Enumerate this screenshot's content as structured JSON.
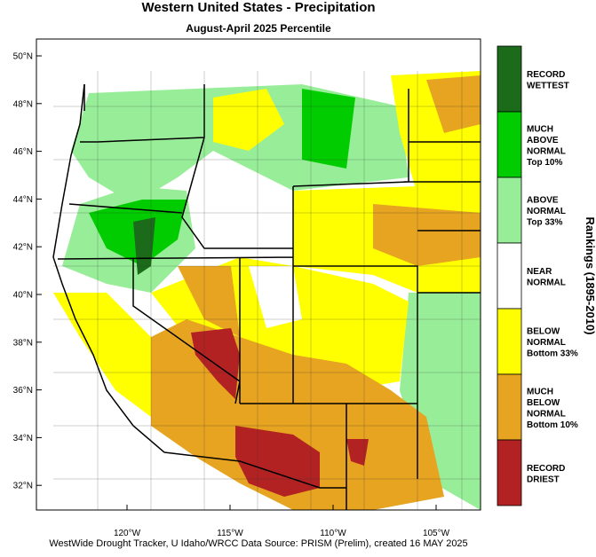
{
  "header": {
    "title": "Western United States - Precipitation",
    "subtitle": "August-April 2025 Percentile"
  },
  "map": {
    "lon_ticks": [
      {
        "value": -120,
        "label": "120°W"
      },
      {
        "value": -115,
        "label": "115°W"
      },
      {
        "value": -110,
        "label": "110°W"
      },
      {
        "value": -105,
        "label": "105°W"
      }
    ],
    "lat_ticks": [
      {
        "value": 50,
        "label": "50°N"
      },
      {
        "value": 48,
        "label": "48°N"
      },
      {
        "value": 46,
        "label": "46°N"
      },
      {
        "value": 44,
        "label": "44°N"
      },
      {
        "value": 42,
        "label": "42°N"
      },
      {
        "value": 40,
        "label": "40°N"
      },
      {
        "value": 38,
        "label": "38°N"
      },
      {
        "value": 36,
        "label": "36°N"
      },
      {
        "value": 34,
        "label": "34°N"
      },
      {
        "value": 32,
        "label": "32°N"
      }
    ]
  },
  "legend": {
    "title": "Rankings (1895-2010)",
    "items": [
      {
        "color": "#1b6b1b",
        "lines": [
          "RECORD",
          "WETTEST"
        ]
      },
      {
        "color": "#00cc00",
        "lines": [
          "MUCH",
          "ABOVE",
          "NORMAL",
          "Top 10%"
        ]
      },
      {
        "color": "#98ee98",
        "lines": [
          "ABOVE",
          "NORMAL",
          "Top 33%"
        ]
      },
      {
        "color": "#ffffff",
        "lines": [
          "NEAR",
          "NORMAL"
        ]
      },
      {
        "color": "#ffff00",
        "lines": [
          "BELOW",
          "NORMAL",
          "Bottom 33%"
        ]
      },
      {
        "color": "#e6a420",
        "lines": [
          "MUCH",
          "BELOW",
          "NORMAL",
          "Bottom 10%"
        ]
      },
      {
        "color": "#b22222",
        "lines": [
          "RECORD",
          "DRIEST"
        ]
      }
    ]
  },
  "footer": "WestWide Drought Tracker, U Idaho/WRCC Data Source: PRISM (Prelim), created 16 MAY 2025"
}
